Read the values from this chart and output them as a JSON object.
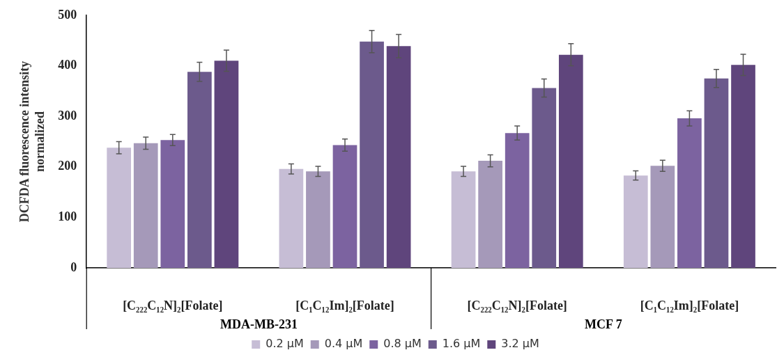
{
  "chart_data": {
    "type": "bar",
    "ylabel": "DCFDA fluorescence intensity\nnormalized",
    "categories": [
      "[C₂₂₂C₁₂N]₂[Folate]",
      "[C₁C₁₂Im]₂[Folate]",
      "[C₂₂₂C₁₂N]₂[Folate]",
      "[C₁C₁₂Im]₂[Folate]"
    ],
    "series": [
      {
        "name": "0.2 µM",
        "color": "#c6bdd5",
        "values": [
          238,
          196,
          191,
          183
        ],
        "errors": [
          12,
          10,
          10,
          9
        ]
      },
      {
        "name": "0.4 µM",
        "color": "#a599b9",
        "values": [
          247,
          191,
          212,
          202
        ],
        "errors": [
          12,
          10,
          12,
          11
        ]
      },
      {
        "name": "0.8 µM",
        "color": "#7c63a0",
        "values": [
          253,
          243,
          267,
          296
        ],
        "errors": [
          11,
          12,
          14,
          15
        ]
      },
      {
        "name": "1.6 µM",
        "color": "#6c5a8c",
        "values": [
          388,
          448,
          356,
          375
        ],
        "errors": [
          19,
          22,
          18,
          18
        ]
      },
      {
        "name": "3.2 µM",
        "color": "#5f457c",
        "values": [
          410,
          439,
          422,
          402
        ],
        "errors": [
          21,
          23,
          22,
          21
        ]
      }
    ],
    "annotations": [
      "MDA-MB-231",
      "MCF 7"
    ],
    "ylim": [
      0,
      500
    ],
    "yticks": [
      0,
      100,
      200,
      300,
      400,
      500
    ],
    "grid": false,
    "legend": "bottom"
  }
}
